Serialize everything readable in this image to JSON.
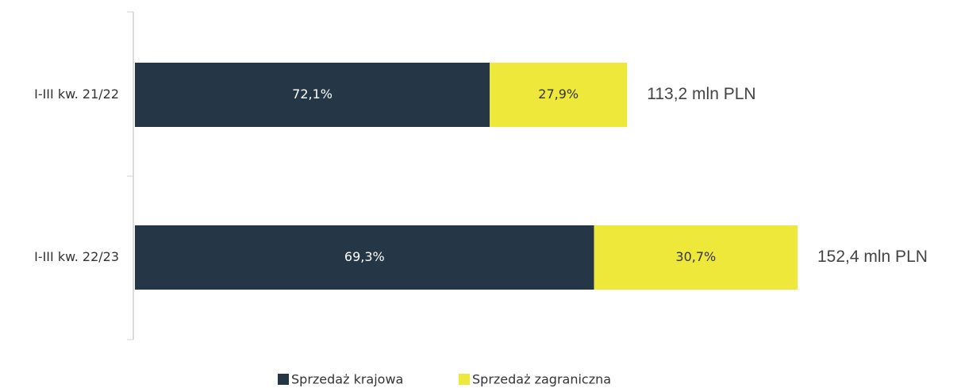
{
  "chart_data": {
    "type": "stacked-bar-horizontal",
    "categories": [
      "I-III kw. 21/22",
      "I-III kw. 22/23"
    ],
    "series": [
      {
        "name": "Sprzedaż krajowa",
        "color": "#253746",
        "values": [
          72.1,
          69.3
        ],
        "value_labels": [
          "72,1%",
          "69,3%"
        ]
      },
      {
        "name": "Sprzedaż zagraniczna",
        "color": "#eee83a",
        "values": [
          27.9,
          30.7
        ],
        "value_labels": [
          "27,9%",
          "30,7%"
        ]
      }
    ],
    "totals": [
      {
        "value": 113.2,
        "label": "113,2 mln PLN"
      },
      {
        "value": 152.4,
        "label": "152,4 mln PLN"
      }
    ]
  }
}
